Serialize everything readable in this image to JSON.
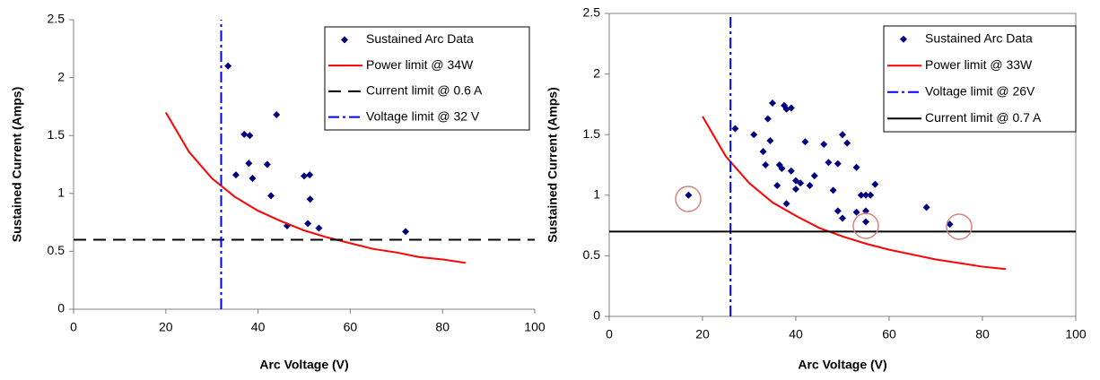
{
  "chart_data": [
    {
      "type": "scatter",
      "xlabel": "Arc Voltage (V)",
      "ylabel": "Sustained Current (Amps)",
      "xlim": [
        0,
        100
      ],
      "xticks": [
        0,
        20,
        40,
        60,
        80,
        100
      ],
      "ylim": [
        0,
        2.5
      ],
      "yticks": [
        0,
        0.5,
        1,
        1.5,
        2,
        2.5
      ],
      "legend": "upper right",
      "series": [
        {
          "name": "Sustained Arc Data",
          "color": "#000080",
          "style": "diamond",
          "x": [
            33.5,
            35.2,
            37.0,
            38.2,
            38.0,
            38.8,
            42.0,
            42.8,
            44.0,
            46.3,
            50.0,
            51.2,
            51.3,
            50.8,
            53.2,
            72.0
          ],
          "values": [
            2.1,
            1.16,
            1.51,
            1.5,
            1.26,
            1.13,
            1.25,
            0.98,
            1.68,
            0.72,
            1.15,
            1.16,
            0.95,
            0.74,
            0.7,
            0.67
          ]
        },
        {
          "name": "Power limit @ 34W",
          "color": "#ff0000",
          "style": "solid",
          "x": [
            20,
            25,
            30,
            35,
            40,
            45,
            50,
            55,
            60,
            65,
            70,
            75,
            80,
            85
          ],
          "values": [
            1.7,
            1.36,
            1.13,
            0.97,
            0.85,
            0.76,
            0.68,
            0.62,
            0.57,
            0.52,
            0.49,
            0.45,
            0.43,
            0.4
          ]
        },
        {
          "name": "Current limit @ 0.6 A",
          "color": "#000000",
          "style": "dashed",
          "x": [
            0,
            100
          ],
          "values": [
            0.6,
            0.6
          ]
        },
        {
          "name": "Voltage limit @ 32 V",
          "color": "#0000ff",
          "style": "dashdot",
          "x": [
            32,
            32
          ],
          "values": [
            0,
            2.5
          ]
        }
      ]
    },
    {
      "type": "scatter",
      "xlabel": "Arc Voltage (V)",
      "ylabel": "Sustained Current (Amps)",
      "xlim": [
        0,
        100
      ],
      "xticks": [
        0,
        20,
        40,
        60,
        80,
        100
      ],
      "ylim": [
        0,
        2.5
      ],
      "yticks": [
        0,
        0.5,
        1,
        1.5,
        2,
        2.5
      ],
      "legend": "upper right",
      "series": [
        {
          "name": "Sustained Arc Data",
          "color": "#000080",
          "style": "diamond",
          "x": [
            17,
            27,
            31,
            33,
            33.5,
            34,
            34.5,
            35,
            36,
            36.5,
            37,
            37.5,
            38,
            38,
            39,
            39,
            40,
            40,
            41,
            42,
            43,
            44,
            46,
            47,
            48,
            49,
            49,
            50,
            50,
            51,
            53,
            53,
            54,
            55,
            55,
            55,
            56,
            57,
            68,
            73
          ],
          "values": [
            1.0,
            1.55,
            1.5,
            1.36,
            1.25,
            1.63,
            1.45,
            1.76,
            1.08,
            1.25,
            1.22,
            1.74,
            0.93,
            1.71,
            1.72,
            1.2,
            1.05,
            1.12,
            1.1,
            1.44,
            1.08,
            1.16,
            1.42,
            1.27,
            1.04,
            1.26,
            0.87,
            0.81,
            1.5,
            1.43,
            1.23,
            0.86,
            1.0,
            0.87,
            0.78,
            1.0,
            1.0,
            1.09,
            0.9,
            0.76
          ]
        },
        {
          "name": "Power limit @ 33W",
          "color": "#ff0000",
          "style": "solid",
          "x": [
            20,
            25,
            30,
            35,
            40,
            45,
            50,
            55,
            60,
            65,
            70,
            75,
            80,
            85
          ],
          "values": [
            1.65,
            1.32,
            1.1,
            0.94,
            0.83,
            0.73,
            0.66,
            0.6,
            0.55,
            0.51,
            0.47,
            0.44,
            0.41,
            0.39
          ]
        },
        {
          "name": "Voltage limit @ 26V",
          "color": "#0000ff",
          "style": "dashdot",
          "x": [
            26,
            26
          ],
          "values": [
            0,
            2.5
          ]
        },
        {
          "name": "Current limit @ 0.7 A",
          "color": "#000000",
          "style": "solid",
          "x": [
            0,
            100
          ],
          "values": [
            0.7,
            0.7
          ]
        }
      ]
    }
  ]
}
